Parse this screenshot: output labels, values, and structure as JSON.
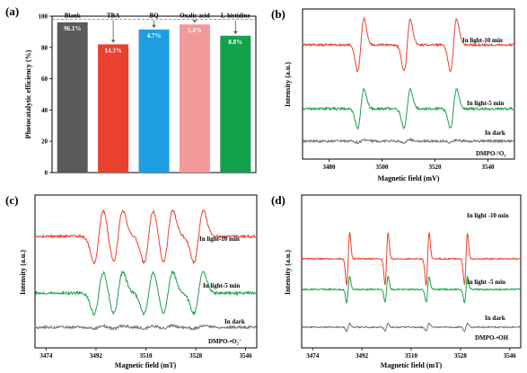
{
  "colors": {
    "dark_gray": "#5a5a5a",
    "red": "#e8412f",
    "blue": "#1e9ee0",
    "pink": "#f2999a",
    "green": "#12a14b",
    "trace_gray": "#707070",
    "trace_red": "#e8412f",
    "trace_green": "#1aa04a"
  },
  "chart_data": [
    {
      "panel": "(a)",
      "type": "bar",
      "categories": [
        "Blank",
        "TBA",
        "BQ",
        "Oxalic acid",
        "L-histidine"
      ],
      "values": [
        96.1,
        82,
        91.5,
        94.7,
        87.5
      ],
      "value_labels": [
        "96.1%",
        "14.3%",
        "4.7%",
        "1.4%",
        "8.8%"
      ],
      "reference_line": 98,
      "ylabel": "Photocatalytic efficiency (%)",
      "ylim": [
        0,
        100
      ],
      "yticks": [
        "0",
        "20",
        "40",
        "60",
        "80",
        "100"
      ]
    },
    {
      "panel": "(b)",
      "type": "line",
      "xlabel": "Magnetic field (mV)",
      "ylabel": "Intensity (a.u.)",
      "xlim": [
        3470,
        3550
      ],
      "xticks": [
        "3480",
        "3500",
        "3520",
        "3540"
      ],
      "probe_label": "DMPO-¹O₂",
      "line_centers": [
        3492,
        3509.5,
        3527
      ],
      "series": [
        {
          "name": "In light-10 min",
          "amplitude": 1.0
        },
        {
          "name": "In light-5 min",
          "amplitude": 0.75
        },
        {
          "name": "In dark",
          "amplitude": 0.05
        }
      ]
    },
    {
      "panel": "(c)",
      "type": "line",
      "xlabel": "Magnetic field (mT)",
      "ylabel": "Intensity (a.u.)",
      "xlim": [
        3470,
        3550
      ],
      "xticks": [
        "3474",
        "3492",
        "3510",
        "3528",
        "3546"
      ],
      "probe_label": "DMPO-•O₂⁻",
      "line_centers": [
        3493,
        3500,
        3511,
        3518,
        3529
      ],
      "series": [
        {
          "name": "In light-10 min",
          "amplitude": 1.0
        },
        {
          "name": "In light-5 min",
          "amplitude": 0.8
        },
        {
          "name": "In dark",
          "amplitude": 0.05
        }
      ]
    },
    {
      "panel": "(d)",
      "type": "line",
      "xlabel": "Magnetic field (mT)",
      "ylabel": "Intensity (a.u.)",
      "xlim": [
        3470,
        3550
      ],
      "xticks": [
        "3474",
        "3492",
        "3510",
        "3528",
        "3546"
      ],
      "probe_label": "DMPO-•OH",
      "line_centers": [
        3487,
        3501,
        3516,
        3530
      ],
      "series": [
        {
          "name": "In light -10 min",
          "amplitude": 1.0
        },
        {
          "name": "In light -5 min",
          "amplitude": 0.5
        },
        {
          "name": "In dark",
          "amplitude": 0.15
        }
      ]
    }
  ]
}
